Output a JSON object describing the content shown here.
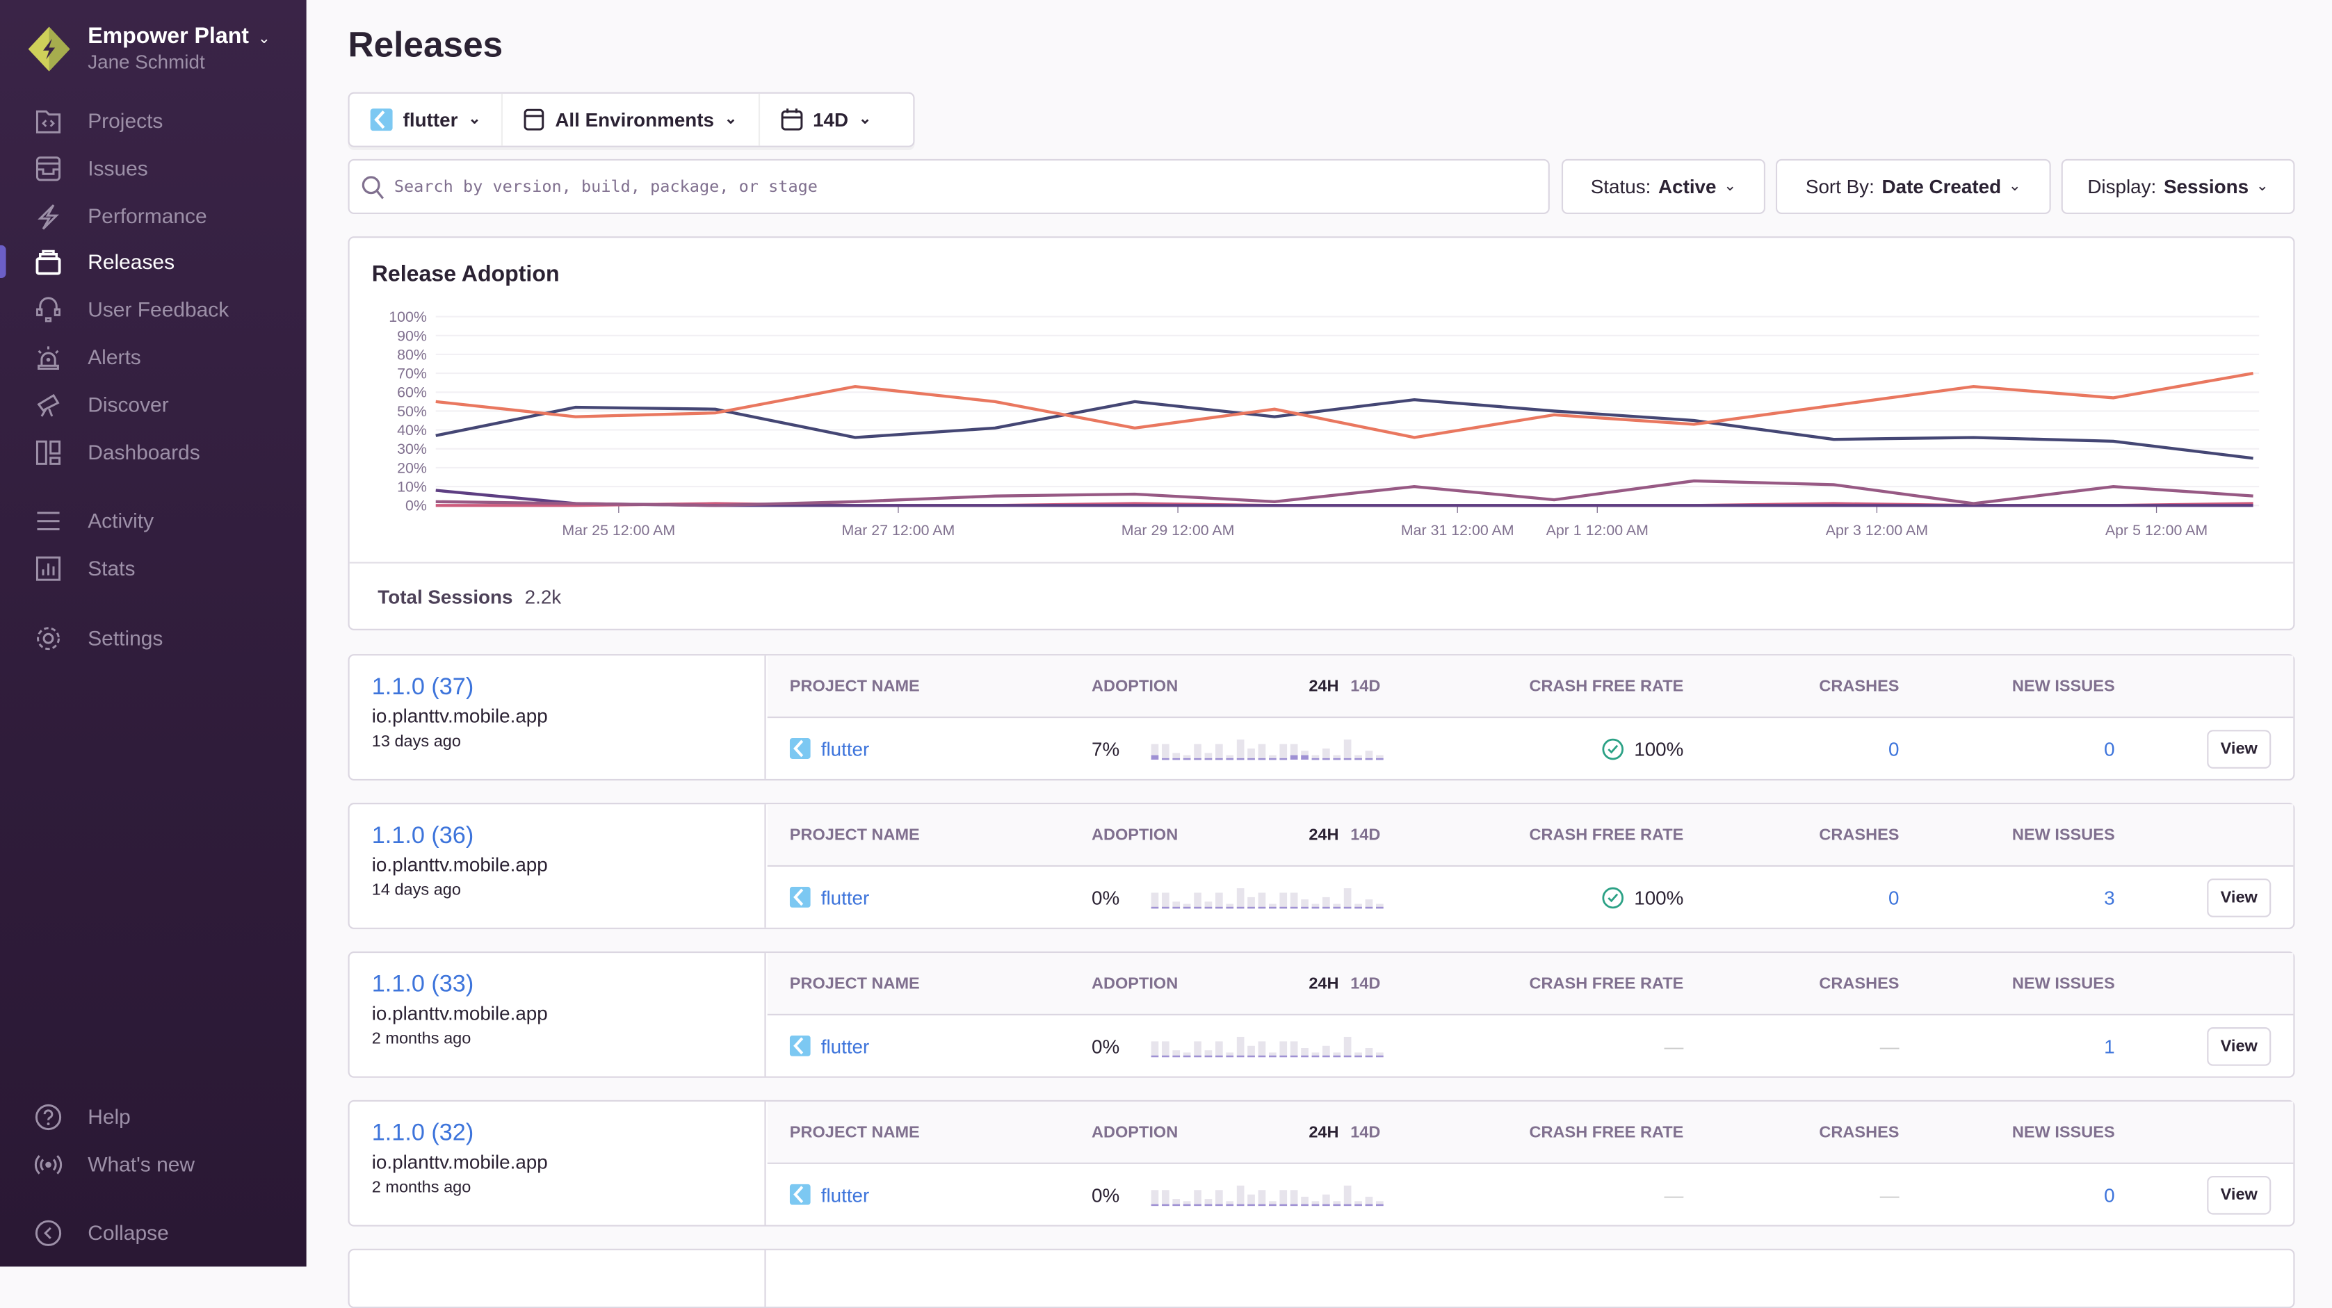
{
  "sidebar": {
    "org": "Empower Plant",
    "user": "Jane Schmidt",
    "items": [
      {
        "label": "Projects",
        "icon": "folder-code-icon"
      },
      {
        "label": "Issues",
        "icon": "inbox-icon"
      },
      {
        "label": "Performance",
        "icon": "lightning-icon"
      },
      {
        "label": "Releases",
        "icon": "releases-icon",
        "active": true
      },
      {
        "label": "User Feedback",
        "icon": "headset-icon"
      },
      {
        "label": "Alerts",
        "icon": "siren-icon"
      },
      {
        "label": "Discover",
        "icon": "telescope-icon"
      },
      {
        "label": "Dashboards",
        "icon": "dashboards-icon"
      }
    ],
    "secondary": [
      {
        "label": "Activity",
        "icon": "list-icon"
      },
      {
        "label": "Stats",
        "icon": "stats-icon"
      }
    ],
    "settings": "Settings",
    "help": "Help",
    "whats_new": "What's new",
    "collapse": "Collapse"
  },
  "page": {
    "title": "Releases"
  },
  "filters": {
    "project": "flutter",
    "environment": "All Environments",
    "period": "14D"
  },
  "search": {
    "placeholder": "Search by version, build, package, or stage"
  },
  "status": {
    "label": "Status:",
    "value": "Active"
  },
  "sort": {
    "label": "Sort By:",
    "value": "Date Created"
  },
  "display": {
    "label": "Display:",
    "value": "Sessions"
  },
  "colors": {
    "accent": "#6c5fc7",
    "link": "#3d74db",
    "success": "#2ba185"
  },
  "chart_data": {
    "type": "line",
    "title": "Release Adoption",
    "ylim": [
      0,
      100
    ],
    "yticks": [
      "100%",
      "90%",
      "80%",
      "70%",
      "60%",
      "50%",
      "40%",
      "30%",
      "20%",
      "10%",
      "0%"
    ],
    "xtick_labels": [
      "Mar 25 12:00 AM",
      "Mar 27 12:00 AM",
      "Mar 29 12:00 AM",
      "Mar 31 12:00 AM",
      "Apr 1 12:00 AM",
      "Apr 3 12:00 AM",
      "Apr 5 12:00 AM"
    ],
    "x": [
      "Mar 23",
      "Mar 24",
      "Mar 25",
      "Mar 26",
      "Mar 27",
      "Mar 28",
      "Mar 29",
      "Mar 30",
      "Mar 31",
      "Apr 1",
      "Apr 2",
      "Apr 3",
      "Apr 4",
      "Apr 5"
    ],
    "grid": true,
    "series": [
      {
        "color": "#e9775f",
        "values": [
          55,
          47,
          49,
          63,
          55,
          41,
          51,
          36,
          48,
          43,
          53,
          63,
          57,
          70
        ]
      },
      {
        "color": "#444674",
        "values": [
          37,
          52,
          51,
          36,
          41,
          55,
          47,
          56,
          50,
          45,
          35,
          36,
          34,
          25
        ]
      },
      {
        "color": "#975984",
        "values": [
          2,
          1,
          0,
          2,
          5,
          6,
          2,
          10,
          3,
          13,
          11,
          1,
          10,
          5
        ]
      },
      {
        "color": "#5d3e82",
        "values": [
          8,
          1,
          0,
          0,
          0,
          0,
          0,
          0,
          0,
          0,
          0,
          0,
          0,
          0
        ]
      },
      {
        "color": "#cd5b7c",
        "values": [
          0,
          0,
          1,
          0,
          0,
          1,
          0,
          0,
          0,
          0,
          1,
          0,
          0,
          1
        ]
      }
    ]
  },
  "summary": {
    "label": "Total Sessions",
    "value": "2.2k"
  },
  "table_headers": {
    "project": "PROJECT NAME",
    "adoption": "ADOPTION",
    "h24": "24H",
    "d14": "14D",
    "crash_free": "CRASH FREE RATE",
    "crashes": "CRASHES",
    "new_issues": "NEW ISSUES"
  },
  "view_label": "View",
  "releases": [
    {
      "version": "1.1.0 (37)",
      "package": "io.planttv.mobile.app",
      "ago": "13 days ago",
      "project": "flutter",
      "adoption": "7%",
      "crash_free": "100%",
      "crashes": "0",
      "new_issues": "0",
      "spark": [
        6,
        6,
        2,
        1,
        6,
        2,
        6,
        1,
        8,
        4,
        6,
        1,
        6,
        6,
        3,
        1,
        4,
        1,
        8,
        1,
        3,
        1
      ],
      "spark_fill": [
        1,
        0,
        0,
        0,
        0,
        0,
        0,
        0,
        0,
        0,
        0,
        0,
        0,
        1,
        1,
        0,
        0,
        0,
        0,
        0,
        0,
        0
      ]
    },
    {
      "version": "1.1.0 (36)",
      "package": "io.planttv.mobile.app",
      "ago": "14 days ago",
      "project": "flutter",
      "adoption": "0%",
      "crash_free": "100%",
      "crashes": "0",
      "new_issues": "3",
      "spark": [
        6,
        6,
        2,
        1,
        6,
        2,
        6,
        1,
        8,
        4,
        6,
        1,
        6,
        6,
        3,
        1,
        4,
        1,
        8,
        1,
        3,
        1
      ]
    },
    {
      "version": "1.1.0 (33)",
      "package": "io.planttv.mobile.app",
      "ago": "2 months ago",
      "project": "flutter",
      "adoption": "0%",
      "crash_free": "—",
      "crashes": "—",
      "new_issues": "1",
      "spark": [
        6,
        6,
        2,
        1,
        6,
        2,
        6,
        1,
        8,
        4,
        6,
        1,
        6,
        6,
        3,
        1,
        4,
        1,
        8,
        1,
        3,
        1
      ]
    },
    {
      "version": "1.1.0 (32)",
      "package": "io.planttv.mobile.app",
      "ago": "2 months ago",
      "project": "flutter",
      "adoption": "0%",
      "crash_free": "—",
      "crashes": "—",
      "new_issues": "0",
      "spark": [
        6,
        6,
        2,
        1,
        6,
        2,
        6,
        1,
        8,
        4,
        6,
        1,
        6,
        6,
        3,
        1,
        4,
        1,
        8,
        1,
        3,
        1
      ]
    }
  ]
}
